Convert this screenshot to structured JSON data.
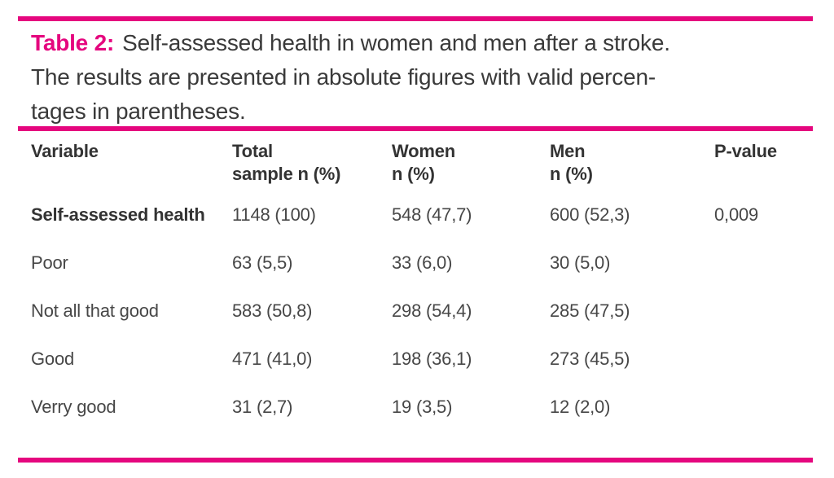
{
  "accent_color": "#e5067e",
  "caption": {
    "label": "Table 2:",
    "lines": [
      "Self-assessed health in women and men after a stroke.",
      "The results are presented in absolute figures with valid percen-",
      "tages in parentheses."
    ]
  },
  "table": {
    "columns": [
      {
        "line1": "Variable",
        "line2": ""
      },
      {
        "line1": "Total",
        "line2": "sample n (%)"
      },
      {
        "line1": "Women",
        "line2": "n (%)"
      },
      {
        "line1": "Men",
        "line2": "n (%)"
      },
      {
        "line1": "P-value",
        "line2": ""
      }
    ],
    "rows": [
      {
        "variable": "Self-assessed health",
        "total": "1148 (100)",
        "women": "548 (47,7)",
        "men": "600 (52,3)",
        "p_value": "0,009"
      },
      {
        "variable": "Poor",
        "total": "63 (5,5)",
        "women": "33 (6,0)",
        "men": "30 (5,0)",
        "p_value": ""
      },
      {
        "variable": "Not all that good",
        "total": "583 (50,8)",
        "women": "298 (54,4)",
        "men": "285 (47,5)",
        "p_value": ""
      },
      {
        "variable": "Good",
        "total": "471 (41,0)",
        "women": "198 (36,1)",
        "men": "273 (45,5)",
        "p_value": ""
      },
      {
        "variable": "Verry good",
        "total": "31 (2,7)",
        "women": "19 (3,5)",
        "men": "12 (2,0)",
        "p_value": ""
      }
    ]
  }
}
